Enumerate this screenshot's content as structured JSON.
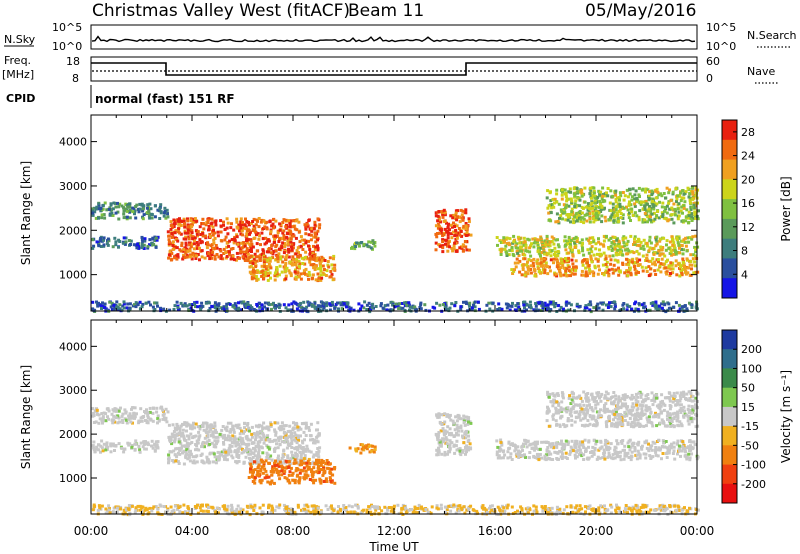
{
  "header": {
    "station": "Christmas Valley West (fitACF)",
    "beam": "Beam 11",
    "date": "05/May/2016"
  },
  "strips": {
    "nsky": {
      "label": "N.Sky",
      "tick_top": "10^5",
      "tick_bottom": "10^0"
    },
    "nsearch": {
      "label": "N.Search",
      "tick_top": "10^5",
      "tick_bottom": "10^0"
    },
    "freq": {
      "label_top": "Freq.",
      "label_unit": "[MHz]",
      "tick_top": "18",
      "tick_bottom": "8"
    },
    "nave": {
      "label": "Nave",
      "tick_top": "60",
      "tick_bottom": "0"
    },
    "cpid": {
      "label": "CPID",
      "value": "normal (fast) 151 RF"
    }
  },
  "colors": {
    "power": [
      "#1515e6",
      "#2a4f9e",
      "#3d7d7d",
      "#5a9a5a",
      "#7fc040",
      "#ccd41a",
      "#f0a020",
      "#f06a10",
      "#e82010"
    ],
    "velocity": [
      "#1e3aa0",
      "#2f6e8c",
      "#3a8a4a",
      "#7ec850",
      "#c8c8c8",
      "#f0b020",
      "#f08010",
      "#f04010",
      "#e81010"
    ],
    "ground": "#9aa0a0"
  },
  "chart_data": [
    {
      "type": "heatmap",
      "panel": "power",
      "ylabel": "Slant Range [km]",
      "xlabel": "Time UT",
      "x_ticks": [
        "00:00",
        "04:00",
        "08:00",
        "12:00",
        "16:00",
        "20:00",
        "00:00"
      ],
      "x_range_hours": [
        0,
        24
      ],
      "y_ticks": [
        1000,
        2000,
        3000,
        4000
      ],
      "ylim": [
        180,
        4600
      ],
      "colorbar_label": "Power [dB]",
      "colorbar_ticks": [
        4,
        8,
        12,
        16,
        20,
        24,
        28
      ],
      "colorbar_range": [
        0,
        30
      ],
      "regions": [
        {
          "t0": 0.0,
          "t1": 3.0,
          "r0": 2280,
          "r1": 2650,
          "value": 10
        },
        {
          "t0": 0.0,
          "t1": 2.6,
          "r0": 1620,
          "r1": 1880,
          "value": 7
        },
        {
          "t0": 3.0,
          "t1": 9.0,
          "r0": 1350,
          "r1": 2300,
          "value": 26
        },
        {
          "t0": 6.2,
          "t1": 9.6,
          "r0": 900,
          "r1": 1450,
          "value": 22
        },
        {
          "t0": 10.2,
          "t1": 11.2,
          "r0": 1600,
          "r1": 1800,
          "value": 12
        },
        {
          "t0": 13.6,
          "t1": 15.0,
          "r0": 1550,
          "r1": 2500,
          "value": 26
        },
        {
          "t0": 16.0,
          "t1": 24.0,
          "r0": 1450,
          "r1": 1900,
          "value": 18
        },
        {
          "t0": 16.6,
          "t1": 24.0,
          "r0": 1000,
          "r1": 1400,
          "value": 22
        },
        {
          "t0": 18.0,
          "t1": 24.0,
          "r0": 2200,
          "r1": 3000,
          "value": 16
        },
        {
          "t0": 0.0,
          "t1": 24.0,
          "r0": 200,
          "r1": 420,
          "value": 6
        }
      ]
    },
    {
      "type": "heatmap",
      "panel": "velocity",
      "ylabel": "Slant Range [km]",
      "xlabel": "Time UT",
      "x_ticks": [
        "00:00",
        "04:00",
        "08:00",
        "12:00",
        "16:00",
        "20:00",
        "00:00"
      ],
      "x_range_hours": [
        0,
        24
      ],
      "y_ticks": [
        1000,
        2000,
        3000,
        4000
      ],
      "ylim": [
        180,
        4600
      ],
      "colorbar_label": "Velocity [m s⁻¹]",
      "colorbar_ticks": [
        200,
        100,
        50,
        15,
        -15,
        -50,
        -100,
        -200
      ],
      "regions": [
        {
          "t0": 0.0,
          "t1": 3.0,
          "r0": 2280,
          "r1": 2650,
          "value": 0
        },
        {
          "t0": 0.0,
          "t1": 2.6,
          "r0": 1620,
          "r1": 1880,
          "value": 0
        },
        {
          "t0": 3.0,
          "t1": 9.0,
          "r0": 1350,
          "r1": 2300,
          "value": 0
        },
        {
          "t0": 6.2,
          "t1": 9.6,
          "r0": 900,
          "r1": 1450,
          "value": -80
        },
        {
          "t0": 10.2,
          "t1": 11.2,
          "r0": 1600,
          "r1": 1800,
          "value": -60
        },
        {
          "t0": 13.6,
          "t1": 15.0,
          "r0": 1550,
          "r1": 2500,
          "value": 0
        },
        {
          "t0": 16.0,
          "t1": 24.0,
          "r0": 1450,
          "r1": 1900,
          "value": 0
        },
        {
          "t0": 18.0,
          "t1": 24.0,
          "r0": 2200,
          "r1": 3000,
          "value": 0
        },
        {
          "t0": 0.0,
          "t1": 24.0,
          "r0": 200,
          "r1": 420,
          "value": -20
        }
      ]
    }
  ]
}
